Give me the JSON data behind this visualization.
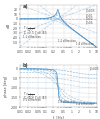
{
  "bg_color": "#ffffff",
  "line_color": "#5599cc",
  "line_color_light": "#99bbdd",
  "grid_color": "#dddddd",
  "text_color": "#444444",
  "panel_a": {
    "ylabel": "dB",
    "xlim_log": [
      -2,
      1
    ],
    "ylim": [
      -60,
      30
    ],
    "yticks": [
      20,
      10,
      0,
      -10,
      -20,
      -30,
      -40,
      -50
    ],
    "xticks": [
      0.01,
      0.02,
      0.05,
      0.1,
      0.2,
      0.5,
      1.0,
      2.0,
      5.0,
      10.0
    ],
    "xticklabels": [
      "0.01",
      "0.02",
      "0.05",
      "0.1",
      "0.2",
      "0.5",
      "1",
      "2",
      "5",
      "10"
    ],
    "fn": 0.3,
    "zetas": [
      0.05,
      0.1,
      0.2,
      0.5,
      1.0
    ],
    "asymptote_slopes": [
      20,
      0,
      -20,
      -40
    ],
    "label_a": "a)"
  },
  "panel_b": {
    "ylabel": "phase [deg]",
    "xlabel": "f  [Hz]",
    "xlim_log": [
      -2,
      1
    ],
    "ylim": [
      -200,
      20
    ],
    "yticks": [
      0,
      -50,
      -100,
      -150,
      -200
    ],
    "xticks": [
      0.01,
      0.02,
      0.05,
      0.1,
      0.2,
      0.5,
      1.0,
      2.0,
      5.0,
      10.0
    ],
    "xticklabels": [
      "0.01",
      "0.02",
      "0.05",
      "0.1",
      "0.2",
      "0.5",
      "1",
      "2",
      "5",
      "10"
    ],
    "fn": 0.3,
    "zetas": [
      0.05,
      0.1,
      0.2,
      0.5,
      1.0
    ],
    "label_b": "b)"
  }
}
